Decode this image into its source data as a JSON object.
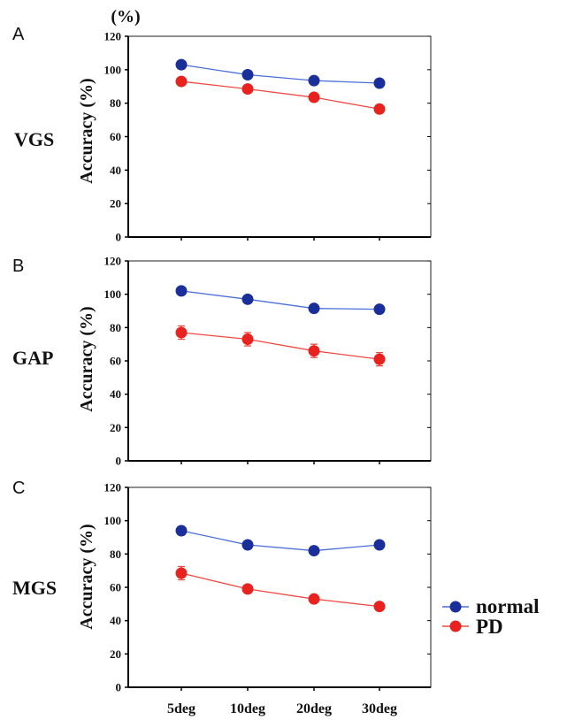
{
  "unit_label": "(%)",
  "colors": {
    "normal": "#1a2f9a",
    "PD": "#e8221e",
    "normal_line": "#4a6fd6",
    "PD_line": "#ee4a44"
  },
  "legend": [
    "normal",
    "PD"
  ],
  "chart_data": [
    {
      "type": "line",
      "panel": "A",
      "condition": "VGS",
      "ylabel": "Accuracy (%)",
      "ylim": [
        0,
        120
      ],
      "yticks": [
        "0",
        "20",
        "40",
        "60",
        "80",
        "100",
        "120"
      ],
      "categories": [
        "5deg",
        "10deg",
        "20deg",
        "30deg"
      ],
      "series": [
        {
          "name": "normal",
          "values": [
            103,
            97,
            93.5,
            92
          ],
          "errors": [
            0,
            0,
            0,
            0
          ]
        },
        {
          "name": "PD",
          "values": [
            93,
            88.5,
            83.5,
            76.5
          ],
          "errors": [
            0,
            0,
            0,
            0
          ]
        }
      ]
    },
    {
      "type": "line",
      "panel": "B",
      "condition": "GAP",
      "ylabel": "Accuracy (%)",
      "ylim": [
        0,
        120
      ],
      "yticks": [
        "0",
        "20",
        "40",
        "60",
        "80",
        "100",
        "120"
      ],
      "categories": [
        "5deg",
        "10deg",
        "20deg",
        "30deg"
      ],
      "series": [
        {
          "name": "normal",
          "values": [
            102,
            97,
            91.5,
            91
          ],
          "errors": [
            0,
            0,
            0,
            0
          ]
        },
        {
          "name": "PD",
          "values": [
            77,
            73,
            66,
            61
          ],
          "errors": [
            4,
            4,
            4,
            4
          ]
        }
      ]
    },
    {
      "type": "line",
      "panel": "C",
      "condition": "MGS",
      "ylabel": "Accuracy (%)",
      "ylim": [
        0,
        120
      ],
      "yticks": [
        "0",
        "20",
        "40",
        "60",
        "80",
        "100",
        "120"
      ],
      "categories": [
        "5deg",
        "10deg",
        "20deg",
        "30deg"
      ],
      "series": [
        {
          "name": "normal",
          "values": [
            94,
            85.5,
            82,
            85.5
          ],
          "errors": [
            2.5,
            0,
            0,
            0
          ]
        },
        {
          "name": "PD",
          "values": [
            68.5,
            59,
            53,
            48.5
          ],
          "errors": [
            4,
            2,
            2,
            2
          ]
        }
      ]
    }
  ]
}
